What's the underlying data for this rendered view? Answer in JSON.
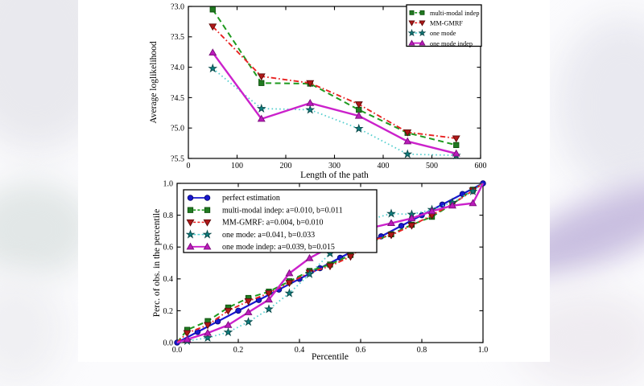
{
  "background": {
    "page_color": "#fbfbfd",
    "figure_color": "#ffffff",
    "lavender_blob_color": "#c9bfe0",
    "gray_blob_color": "#e9e9ee"
  },
  "chart_data": [
    {
      "type": "line",
      "title": "",
      "xlabel": "Length of the path",
      "ylabel": "Average loglikelihood",
      "xlim": [
        0,
        600
      ],
      "ylim": [
        -5.5,
        -3.0
      ],
      "grid": false,
      "legend_position": "upper right",
      "xticks": {
        "values": [
          0,
          100,
          200,
          300,
          400,
          500,
          600
        ],
        "labels": [
          "0",
          "100",
          "200",
          "300",
          "400",
          "500",
          "600"
        ]
      },
      "yticks": {
        "values": [
          -5.5,
          -5.0,
          -4.5,
          -4.0,
          -3.5,
          -3.0
        ],
        "labels": [
          "?5.5",
          "?5.0",
          "?4.5",
          "?4.0",
          "?3.5",
          "?3.0"
        ]
      },
      "x": [
        50,
        150,
        250,
        350,
        450,
        550
      ],
      "series": [
        {
          "name": "multi-modal indep",
          "label": "multi-modal indep",
          "marker": "square",
          "line": "dashed",
          "lw": 2.0,
          "color": "#217a21",
          "line_color": "#1f9a1f",
          "edge": "#0d4f0d",
          "values": [
            -3.05,
            -4.26,
            -4.27,
            -4.7,
            -5.08,
            -5.28
          ]
        },
        {
          "name": "MM-GMRF",
          "label": "MM-GMRF",
          "marker": "triangle-down",
          "line": "dashdot",
          "lw": 1.9,
          "color": "#b01818",
          "line_color": "#e82222",
          "edge": "#5c0a0a",
          "values": [
            -3.33,
            -4.15,
            -4.26,
            -4.61,
            -5.07,
            -5.17
          ]
        },
        {
          "name": "one mode",
          "label": "one mode",
          "marker": "star",
          "line": "dotted",
          "lw": 1.8,
          "color": "#0f7d7d",
          "line_color": "#57cfcf",
          "edge": "#0a4a4a",
          "values": [
            -4.02,
            -4.68,
            -4.7,
            -5.01,
            -5.43,
            -5.45
          ]
        },
        {
          "name": "one mode indep",
          "label": "one mode indep",
          "marker": "triangle-up",
          "line": "solid",
          "lw": 2.4,
          "color": "#bb1abb",
          "line_color": "#cb21cb",
          "edge": "#7a0e7a",
          "values": [
            -3.76,
            -4.85,
            -4.59,
            -4.8,
            -5.22,
            -5.42
          ]
        }
      ]
    },
    {
      "type": "line",
      "title": "",
      "xlabel": "Percentile",
      "ylabel": "Perc. of obs. in the percentile",
      "xlim": [
        0,
        1
      ],
      "ylim": [
        0,
        1
      ],
      "grid": false,
      "legend_position": "upper left",
      "xticks": {
        "values": [
          0,
          0.2,
          0.4,
          0.6,
          0.8,
          1.0
        ],
        "labels": [
          "0.0",
          "0.2",
          "0.4",
          "0.6",
          "0.8",
          "1.0"
        ]
      },
      "yticks": {
        "values": [
          0,
          0.2,
          0.4,
          0.6,
          0.8,
          1.0
        ],
        "labels": [
          "0.0",
          "0.2",
          "0.4",
          "0.6",
          "0.8",
          "1.0"
        ]
      },
      "x": [
        0.033,
        0.1,
        0.167,
        0.233,
        0.3,
        0.367,
        0.433,
        0.5,
        0.567,
        0.633,
        0.7,
        0.767,
        0.833,
        0.9,
        0.967
      ],
      "series": [
        {
          "name": "perfect estimation",
          "label": "perfect estimation",
          "marker": "circle",
          "line": "solid",
          "lw": 2.2,
          "color": "#1717cf",
          "line_color": "#1717cf",
          "edge": "#0a0a70",
          "x": [
            0,
            0.067,
            0.133,
            0.2,
            0.267,
            0.333,
            0.4,
            0.467,
            0.533,
            0.6,
            0.667,
            0.733,
            0.8,
            0.867,
            0.933,
            1.0
          ],
          "values": [
            0,
            0.067,
            0.133,
            0.2,
            0.267,
            0.333,
            0.4,
            0.467,
            0.533,
            0.6,
            0.667,
            0.733,
            0.8,
            0.867,
            0.933,
            1.0
          ]
        },
        {
          "name": "multi-modal indep",
          "label": "multi-modal indep: a=0.010, b=0.011",
          "marker": "square",
          "line": "dashed",
          "lw": 2.0,
          "color": "#217a21",
          "line_color": "#1f9a1f",
          "edge": "#0d4f0d",
          "extend_to_corners": true,
          "values": [
            0.08,
            0.135,
            0.22,
            0.28,
            0.32,
            0.385,
            0.45,
            0.49,
            0.55,
            0.63,
            0.68,
            0.74,
            0.79,
            0.87,
            0.96
          ]
        },
        {
          "name": "MM-GMRF",
          "label": "MM-GMRF: a=0.004, b=0.010",
          "marker": "triangle-down",
          "line": "dashdot",
          "lw": 1.9,
          "color": "#b01818",
          "line_color": "#e82222",
          "edge": "#5c0a0a",
          "extend_to_corners": true,
          "values": [
            0.06,
            0.11,
            0.2,
            0.26,
            0.31,
            0.375,
            0.44,
            0.48,
            0.54,
            0.64,
            0.675,
            0.735,
            0.8,
            0.87,
            0.955
          ]
        },
        {
          "name": "one mode",
          "label": "one mode: a=0.041, b=0.033",
          "marker": "star",
          "line": "dotted",
          "lw": 1.8,
          "color": "#0f7d7d",
          "line_color": "#57cfcf",
          "edge": "#0a4a4a",
          "extend_to_corners": true,
          "values": [
            0.01,
            0.03,
            0.065,
            0.13,
            0.21,
            0.31,
            0.43,
            0.56,
            0.68,
            0.775,
            0.81,
            0.805,
            0.835,
            0.88,
            0.95
          ]
        },
        {
          "name": "one mode indep",
          "label": "one mode indep: a=0.039, b=0.015",
          "marker": "triangle-up",
          "line": "solid",
          "lw": 2.4,
          "color": "#bb1abb",
          "line_color": "#cb21cb",
          "edge": "#7a0e7a",
          "extend_to_corners": true,
          "values": [
            0.02,
            0.06,
            0.11,
            0.19,
            0.27,
            0.435,
            0.53,
            0.6,
            0.62,
            0.72,
            0.75,
            0.78,
            0.825,
            0.86,
            0.875
          ]
        }
      ]
    }
  ]
}
